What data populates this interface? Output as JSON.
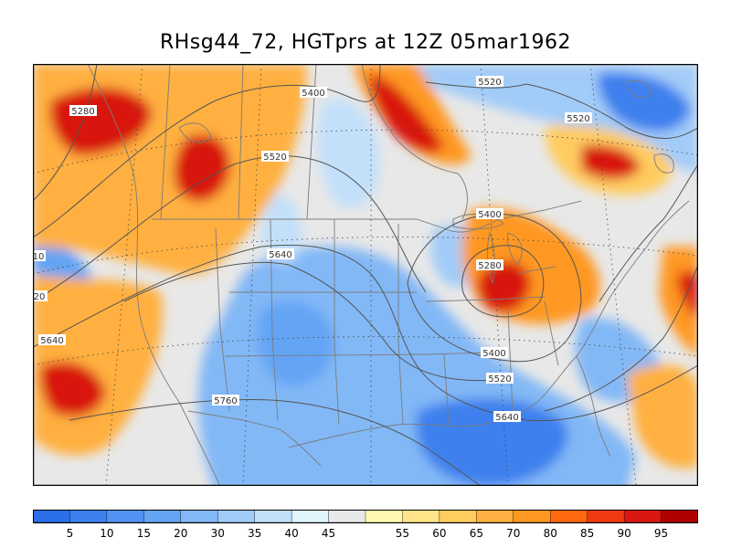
{
  "title": "RHsg44_72, HGTprs at 12Z  05mar1962",
  "colors": {
    "bins": [
      "#2a6ee8",
      "#3c80ee",
      "#5092f2",
      "#64a4f4",
      "#82b8f6",
      "#a2ccf8",
      "#c2e0fa",
      "#e0f4fc",
      "#e8e8e8",
      "#fff8b0",
      "#ffe48a",
      "#ffcc60",
      "#ffb040",
      "#ff9820",
      "#ff6a10",
      "#f03a10",
      "#d81810",
      "#b00000"
    ]
  },
  "colorbar": {
    "labels": [
      "5",
      "10",
      "15",
      "20",
      "30",
      "35",
      "40",
      "45",
      "55",
      "60",
      "65",
      "70",
      "80",
      "85",
      "90",
      "95"
    ]
  },
  "contour_labels": [
    "5280",
    "5400",
    "5520",
    "5520",
    "5520",
    "5400",
    "5280",
    "5640",
    "5400",
    "5520",
    "5640",
    "5640",
    "5760",
    "10",
    "20"
  ],
  "rh_blobs": [
    {
      "level": 17,
      "lon": -125,
      "lat": 60
    },
    {
      "level": 17,
      "lon": -110,
      "lat": 60
    },
    {
      "level": 17,
      "lon": -88,
      "lat": 70
    },
    {
      "level": 16,
      "lon": -64,
      "lat": 52
    },
    {
      "level": 16,
      "lon": -80,
      "lat": 41
    },
    {
      "level": 16,
      "lon": -127,
      "lat": 39
    }
  ]
}
